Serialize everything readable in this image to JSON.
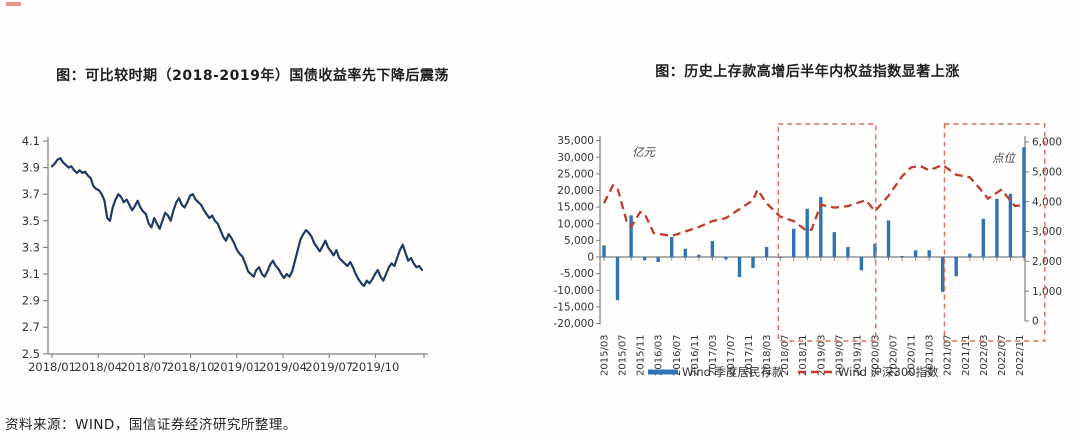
{
  "source_note": "资料来源：WIND，国信证券经济研究所整理。",
  "chart_data": [
    {
      "type": "line",
      "title": "图：可比较时期（2018-2019年）国债收益率先下降后震荡",
      "ylabel": "",
      "xlabel": "",
      "ylim": [
        2.5,
        4.1
      ],
      "y_ticks": [
        "4.1",
        "3.9",
        "3.7",
        "3.5",
        "3.3",
        "3.1",
        "2.9",
        "2.7",
        "2.5"
      ],
      "x_ticks": [
        "2018/01",
        "2018/04",
        "2018/07",
        "2018/10",
        "2019/01",
        "2019/04",
        "2019/07",
        "2019/10"
      ],
      "grid": false,
      "line_color": "#1f3a63",
      "axis_color": "#7f7f7f",
      "series_name": "国债收益率",
      "values": [
        3.91,
        3.93,
        3.96,
        3.97,
        3.94,
        3.92,
        3.9,
        3.91,
        3.88,
        3.86,
        3.88,
        3.86,
        3.87,
        3.84,
        3.82,
        3.76,
        3.74,
        3.73,
        3.7,
        3.65,
        3.52,
        3.5,
        3.6,
        3.66,
        3.7,
        3.68,
        3.64,
        3.66,
        3.62,
        3.58,
        3.61,
        3.65,
        3.6,
        3.57,
        3.55,
        3.48,
        3.45,
        3.52,
        3.48,
        3.44,
        3.5,
        3.56,
        3.54,
        3.5,
        3.58,
        3.64,
        3.67,
        3.62,
        3.6,
        3.64,
        3.69,
        3.7,
        3.66,
        3.64,
        3.62,
        3.58,
        3.55,
        3.52,
        3.54,
        3.5,
        3.48,
        3.43,
        3.38,
        3.35,
        3.4,
        3.37,
        3.33,
        3.28,
        3.25,
        3.23,
        3.18,
        3.12,
        3.1,
        3.08,
        3.13,
        3.15,
        3.1,
        3.08,
        3.12,
        3.17,
        3.2,
        3.16,
        3.14,
        3.1,
        3.07,
        3.1,
        3.08,
        3.12,
        3.2,
        3.28,
        3.36,
        3.4,
        3.43,
        3.41,
        3.38,
        3.33,
        3.3,
        3.27,
        3.31,
        3.35,
        3.3,
        3.27,
        3.24,
        3.28,
        3.22,
        3.2,
        3.18,
        3.16,
        3.19,
        3.15,
        3.1,
        3.06,
        3.03,
        3.01,
        3.05,
        3.03,
        3.06,
        3.1,
        3.13,
        3.08,
        3.05,
        3.1,
        3.15,
        3.18,
        3.16,
        3.22,
        3.28,
        3.32,
        3.26,
        3.2,
        3.22,
        3.18,
        3.15,
        3.16,
        3.13
      ]
    },
    {
      "type": "bar",
      "title": "图：历史上存款高增后半年内权益指数显著上涨",
      "left_axis_unit": "亿元",
      "right_axis_unit": "点位",
      "left_axis_ticks": [
        "35,000",
        "30,000",
        "25,000",
        "20,000",
        "15,000",
        "10,000",
        "5,000",
        "0",
        "-5,000",
        "-10,000",
        "-15,000",
        "-20,000"
      ],
      "left_axis_values": [
        35000,
        30000,
        25000,
        20000,
        15000,
        10000,
        5000,
        0,
        -5000,
        -10000,
        -15000,
        -20000
      ],
      "right_axis_ticks": [
        "6,000",
        "5,000",
        "4,000",
        "3,000",
        "2,000",
        "1,000",
        "0"
      ],
      "right_axis_values": [
        6000,
        5000,
        4000,
        3000,
        2000,
        1000,
        0
      ],
      "x_tick_labels": [
        "2015/03",
        "2015/07",
        "2015/11",
        "2016/03",
        "2016/07",
        "2016/11",
        "2017/03",
        "2017/07",
        "2017/11",
        "2018/03",
        "2018/07",
        "2018/11",
        "2019/03",
        "2019/07",
        "2019/11",
        "2020/03",
        "2020/07",
        "2020/11",
        "2021/03",
        "2021/07",
        "2021/11",
        "2022/03",
        "2022/07",
        "2022/11"
      ],
      "categories": [
        "2015/03",
        "2015/06",
        "2015/09",
        "2015/12",
        "2016/03",
        "2016/06",
        "2016/09",
        "2016/12",
        "2017/03",
        "2017/06",
        "2017/09",
        "2017/12",
        "2018/03",
        "2018/06",
        "2018/09",
        "2018/12",
        "2019/03",
        "2019/06",
        "2019/09",
        "2019/12",
        "2020/03",
        "2020/06",
        "2020/09",
        "2020/12",
        "2021/03",
        "2021/06",
        "2021/09",
        "2021/12",
        "2022/03",
        "2022/06",
        "2022/09",
        "2022/12"
      ],
      "bar_values": [
        3500,
        -13000,
        12500,
        -1000,
        -1500,
        6000,
        2500,
        700,
        4800,
        -700,
        -6000,
        -3300,
        3000,
        -300,
        8500,
        14500,
        18000,
        7500,
        3000,
        -4000,
        4000,
        11000,
        300,
        2000,
        2000,
        -10500,
        -5800,
        1000,
        11500,
        17500,
        19000,
        33000
      ],
      "line_points": [
        [
          0,
          3950
        ],
        [
          2,
          4550
        ],
        [
          3,
          4450
        ],
        [
          5,
          3350
        ],
        [
          6,
          3150
        ],
        [
          8,
          3650
        ],
        [
          9,
          3600
        ],
        [
          11,
          2950
        ],
        [
          15,
          2850
        ],
        [
          18,
          3000
        ],
        [
          21,
          3150
        ],
        [
          24,
          3350
        ],
        [
          27,
          3450
        ],
        [
          30,
          3750
        ],
        [
          33,
          4050
        ],
        [
          34,
          4400
        ],
        [
          36,
          3950
        ],
        [
          39,
          3500
        ],
        [
          42,
          3350
        ],
        [
          45,
          3010
        ],
        [
          46,
          3070
        ],
        [
          48,
          3900
        ],
        [
          51,
          3800
        ],
        [
          54,
          3850
        ],
        [
          57,
          4000
        ],
        [
          58,
          4050
        ],
        [
          60,
          3680
        ],
        [
          63,
          4200
        ],
        [
          66,
          4850
        ],
        [
          68,
          5150
        ],
        [
          70,
          5200
        ],
        [
          72,
          5050
        ],
        [
          75,
          5230
        ],
        [
          78,
          4900
        ],
        [
          81,
          4820
        ],
        [
          84,
          4300
        ],
        [
          85,
          4100
        ],
        [
          88,
          4400
        ],
        [
          91,
          3850
        ],
        [
          93,
          3900
        ]
      ],
      "legend": [
        {
          "label": "Wind 季度居民存款",
          "type": "bar",
          "color": "#2e74b5"
        },
        {
          "label": "Wind 沪深300指数",
          "type": "dashed-line",
          "color": "#c13b2c"
        }
      ],
      "highlight_boxes": [
        {
          "from": "2018/07",
          "to": "2020/03",
          "month_range": [
            38.6,
            60.2
          ]
        },
        {
          "from": "2021/07",
          "to": "2022/12+",
          "month_range": [
            75.4,
            97.6
          ]
        }
      ],
      "bar_color": "#2e74b5",
      "line_color": "#c13b2c",
      "box_color": "#d4705f",
      "axis_color": "#7f7f7f"
    }
  ]
}
